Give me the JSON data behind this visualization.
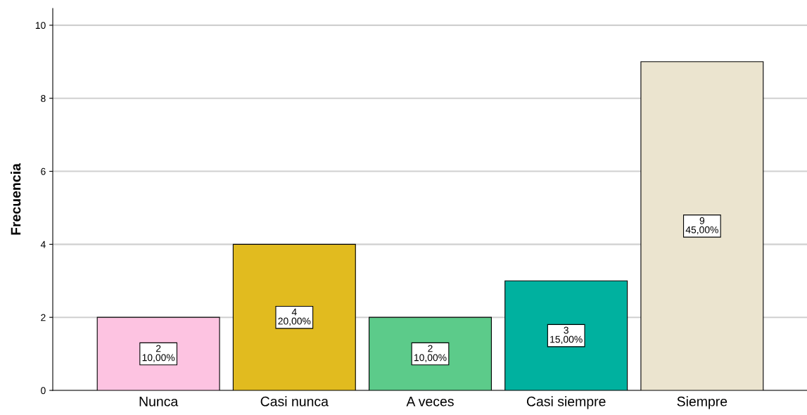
{
  "chart_data": {
    "type": "bar",
    "ylabel": "Frecuencia",
    "categories": [
      "Nunca",
      "Casi nunca",
      "A veces",
      "Casi siempre",
      "Siempre"
    ],
    "values": [
      2,
      4,
      2,
      3,
      9
    ],
    "colors": [
      "#fdc3e1",
      "#e1bb1f",
      "#5ccb8a",
      "#00b19f",
      "#ebe4cf"
    ],
    "value_labels": [
      "2\n10,00%",
      "4\n20,00%",
      "2\n10,00%",
      "3\n15,00%",
      "9\n45,00%"
    ],
    "ylim": [
      0,
      10.46
    ],
    "yticks": [
      0,
      2,
      4,
      6,
      8,
      10
    ],
    "grid": "y",
    "legend": false
  }
}
